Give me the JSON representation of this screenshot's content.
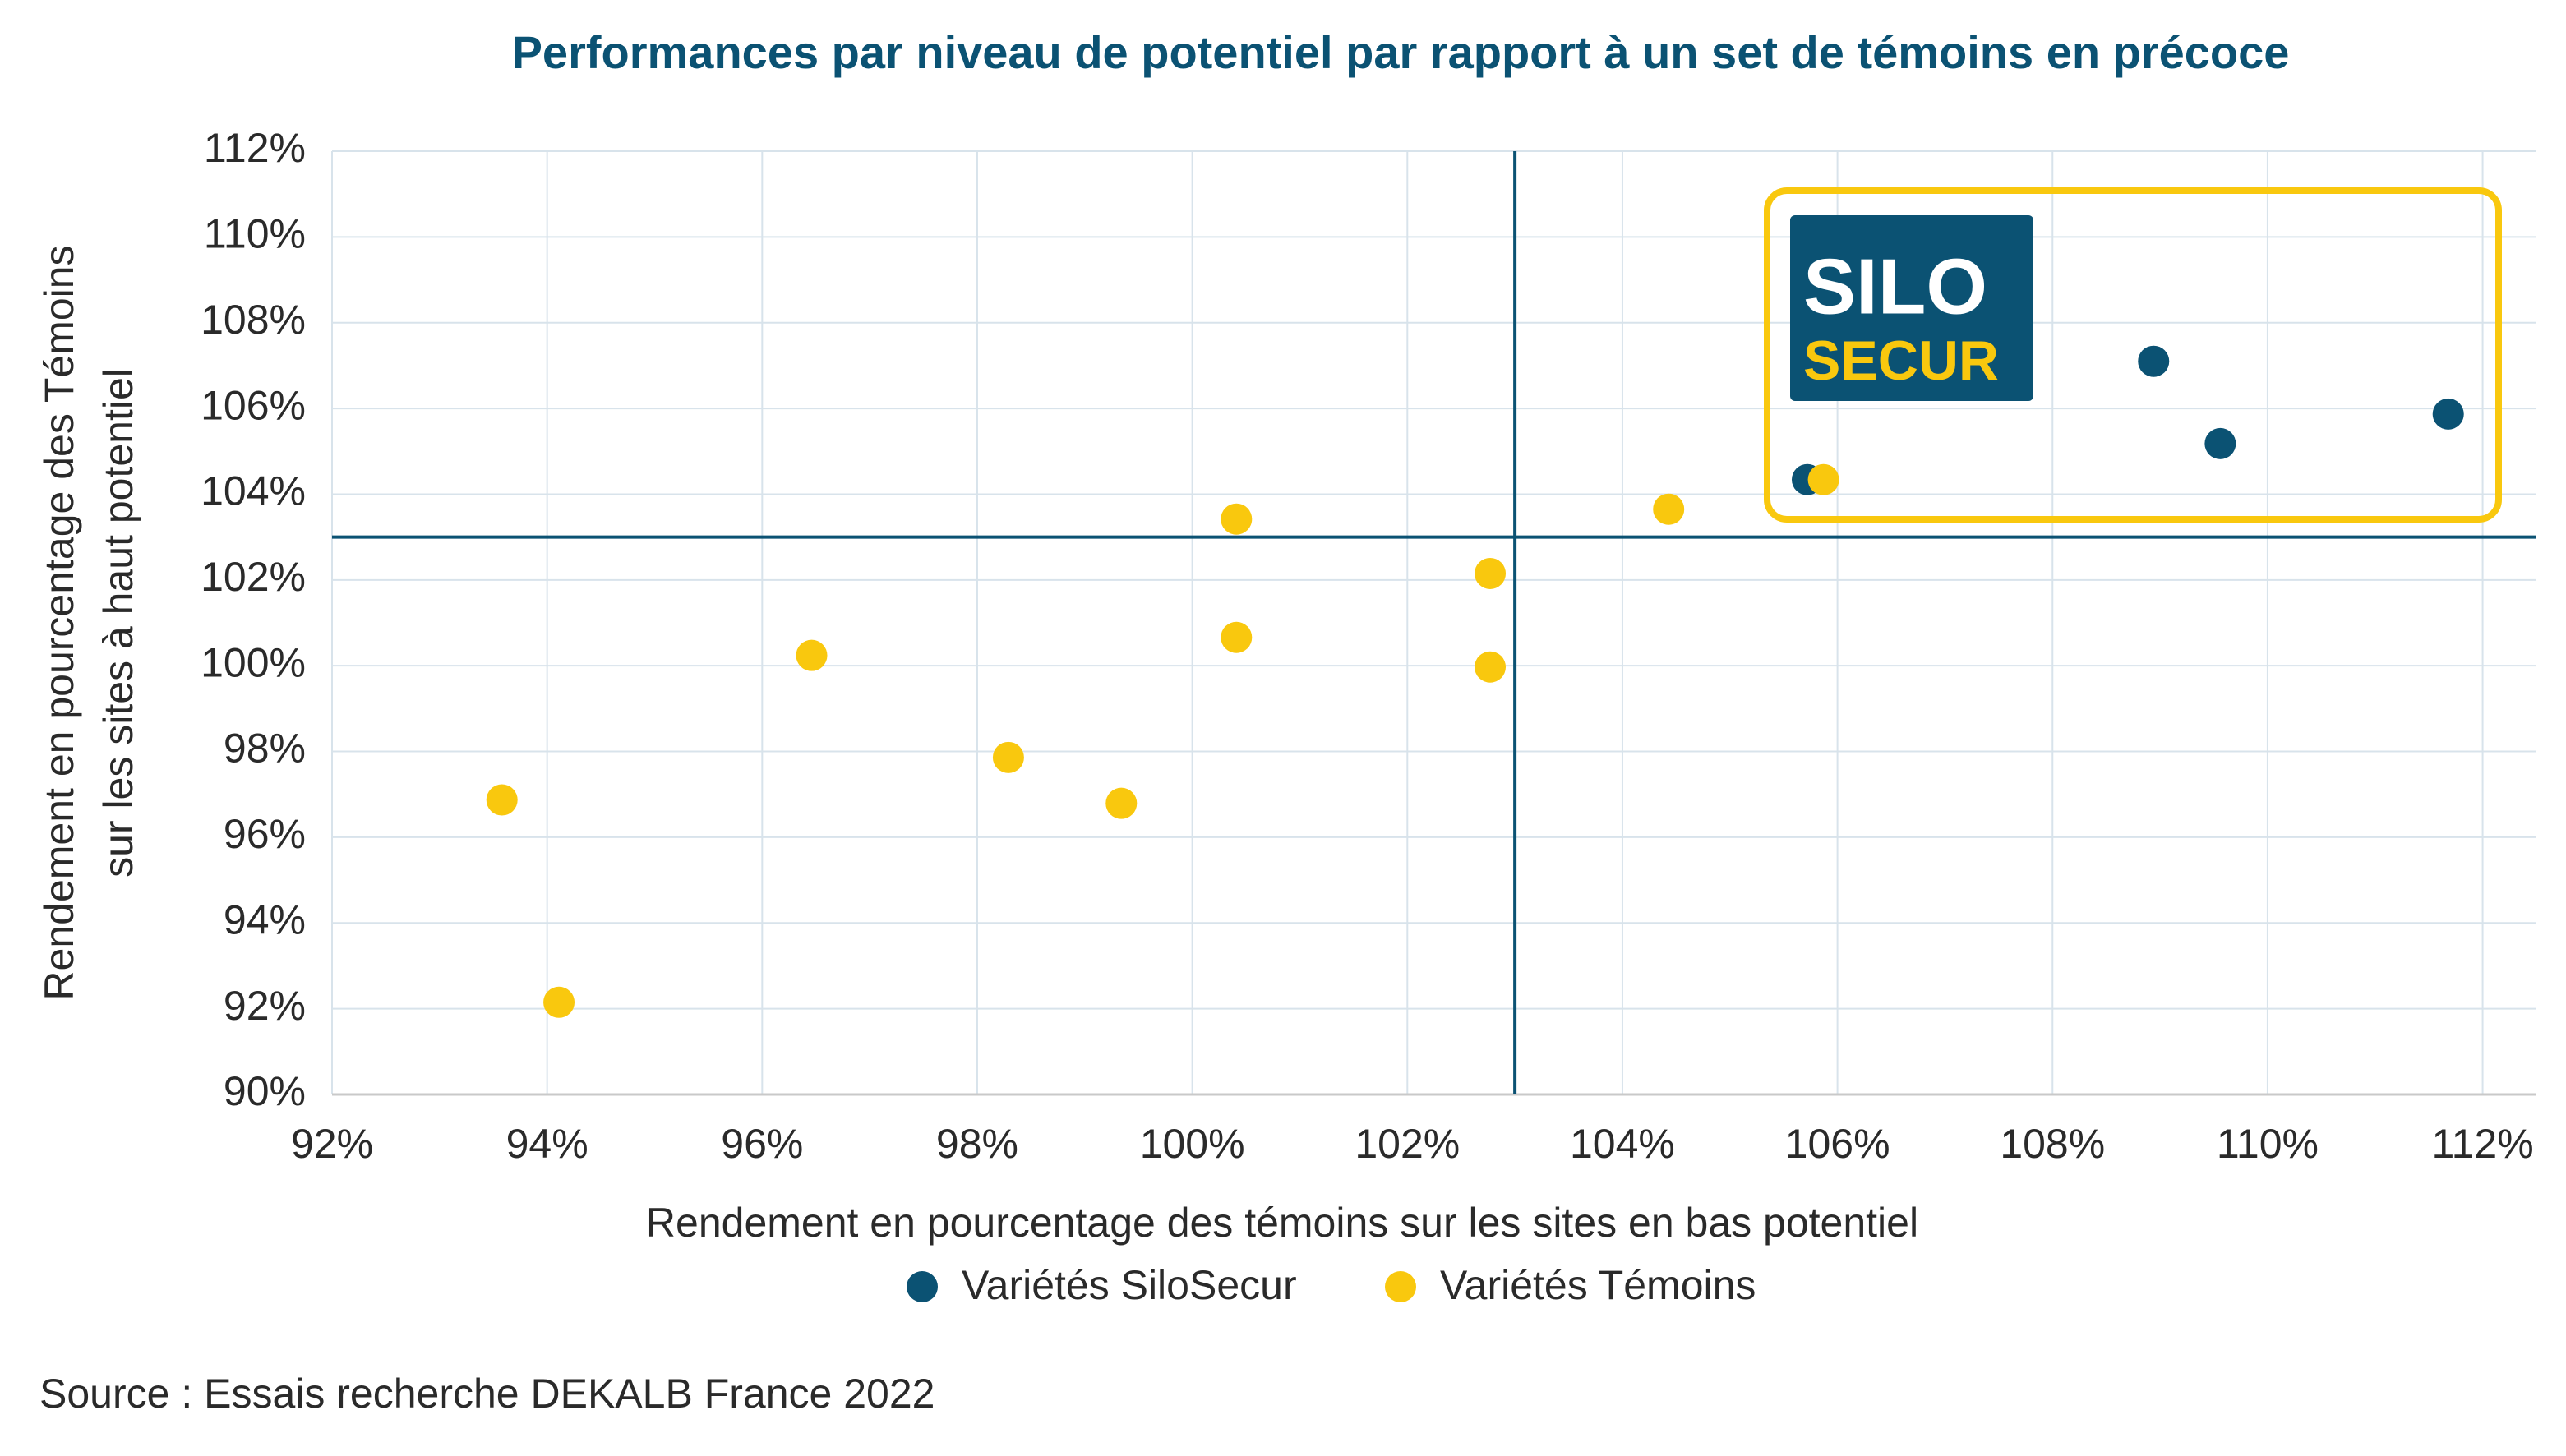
{
  "chart_data": {
    "type": "scatter",
    "title": "Performances par niveau de potentiel par rapport à un set de témoins en précoce",
    "x_label": "Rendement en pourcentage des témoins sur les sites en bas potentiel",
    "y_label": [
      "Rendement en pourcentage des Témoins",
      "sur les sites à haut potentiel"
    ],
    "source": "Source : Essais recherche DEKALB France 2022",
    "logo_text": [
      "SILO",
      "SECUR"
    ],
    "xlim": [
      92,
      112.5
    ],
    "ylim": [
      90,
      112
    ],
    "xticks": [
      {
        "value": 92,
        "label": "92%"
      },
      {
        "value": 94,
        "label": "94%"
      },
      {
        "value": 96,
        "label": "96%"
      },
      {
        "value": 98,
        "label": "98%"
      },
      {
        "value": 100,
        "label": "100%"
      },
      {
        "value": 102,
        "label": "102%"
      },
      {
        "value": 104,
        "label": "104%"
      },
      {
        "value": 106,
        "label": "106%"
      },
      {
        "value": 108,
        "label": "108%"
      },
      {
        "value": 110,
        "label": "110%"
      },
      {
        "value": 112,
        "label": "112%"
      }
    ],
    "yticks": [
      {
        "value": 90,
        "label": "90%"
      },
      {
        "value": 92,
        "label": "92%"
      },
      {
        "value": 94,
        "label": "94%"
      },
      {
        "value": 96,
        "label": "96%"
      },
      {
        "value": 98,
        "label": "98%"
      },
      {
        "value": 100,
        "label": "100%"
      },
      {
        "value": 102,
        "label": "102%"
      },
      {
        "value": 104,
        "label": "104%"
      },
      {
        "value": 106,
        "label": "106%"
      },
      {
        "value": 108,
        "label": "108%"
      },
      {
        "value": 110,
        "label": "110%"
      },
      {
        "value": 112,
        "label": "112%"
      }
    ],
    "grid": true,
    "ref_x": 103,
    "ref_y": 103,
    "series": [
      {
        "name": "Variétés SiloSecur",
        "color": "#0b5273",
        "x": [
          105.72,
          108.94,
          109.56,
          111.68
        ],
        "values": [
          104.34,
          107.1,
          105.18,
          105.87
        ]
      },
      {
        "name": "Variétés Témoins",
        "color": "#f9c80e",
        "x": [
          93.58,
          94.11,
          96.46,
          98.29,
          99.34,
          100.41,
          100.41,
          102.77,
          102.77,
          104.43,
          105.87
        ],
        "values": [
          96.87,
          92.15,
          100.24,
          97.86,
          96.79,
          103.42,
          100.66,
          102.15,
          99.97,
          103.65,
          104.34
        ]
      }
    ]
  }
}
